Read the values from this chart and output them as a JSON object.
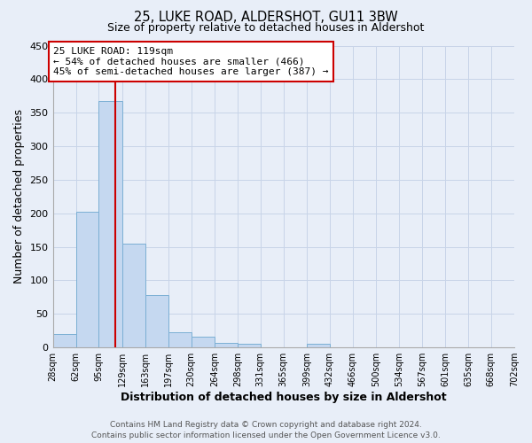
{
  "title": "25, LUKE ROAD, ALDERSHOT, GU11 3BW",
  "subtitle": "Size of property relative to detached houses in Aldershot",
  "xlabel": "Distribution of detached houses by size in Aldershot",
  "ylabel": "Number of detached properties",
  "bin_edges": [
    28,
    62,
    95,
    129,
    163,
    197,
    230,
    264,
    298,
    331,
    365,
    399,
    432,
    466,
    500,
    534,
    567,
    601,
    635,
    668,
    702
  ],
  "bin_labels": [
    "28sqm",
    "62sqm",
    "95sqm",
    "129sqm",
    "163sqm",
    "197sqm",
    "230sqm",
    "264sqm",
    "298sqm",
    "331sqm",
    "365sqm",
    "399sqm",
    "432sqm",
    "466sqm",
    "500sqm",
    "534sqm",
    "567sqm",
    "601sqm",
    "635sqm",
    "668sqm",
    "702sqm"
  ],
  "counts": [
    20,
    203,
    367,
    155,
    78,
    23,
    16,
    7,
    5,
    0,
    0,
    5,
    0,
    0,
    0,
    0,
    0,
    0,
    0,
    0
  ],
  "bar_color": "#c5d8f0",
  "bar_edge_color": "#7bafd4",
  "property_line_x": 119,
  "property_line_color": "#cc0000",
  "annotation_title": "25 LUKE ROAD: 119sqm",
  "annotation_line1": "← 54% of detached houses are smaller (466)",
  "annotation_line2": "45% of semi-detached houses are larger (387) →",
  "annotation_box_color": "#ffffff",
  "annotation_box_edge_color": "#cc0000",
  "ylim": [
    0,
    450
  ],
  "yticks": [
    0,
    50,
    100,
    150,
    200,
    250,
    300,
    350,
    400,
    450
  ],
  "grid_color": "#c8d4e8",
  "background_color": "#e8eef8",
  "footer_line1": "Contains HM Land Registry data © Crown copyright and database right 2024.",
  "footer_line2": "Contains public sector information licensed under the Open Government Licence v3.0."
}
